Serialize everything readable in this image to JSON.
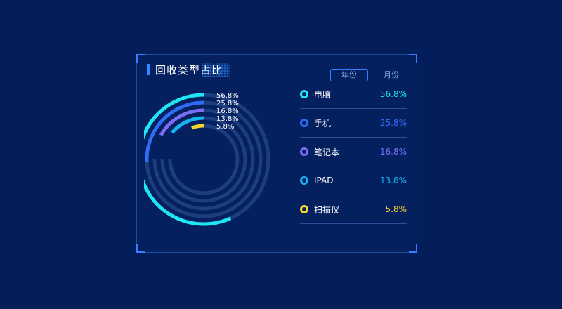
{
  "panel": {
    "title": "回收类型占比",
    "tabs": [
      {
        "label": "年份",
        "active": true
      },
      {
        "label": "月份",
        "active": false
      }
    ]
  },
  "chart_data": {
    "type": "radial-bar",
    "title": "回收类型占比",
    "categories": [
      "电脑",
      "手机",
      "笔记本",
      "IPAD",
      "扫描仪"
    ],
    "values": [
      56.8,
      25.8,
      16.8,
      13.8,
      5.8
    ],
    "labels": [
      "56.8%",
      "25.8%",
      "16.8%",
      "13.8%",
      "5.8%"
    ],
    "colors": [
      "#1ee6f5",
      "#2f6df7",
      "#7b6ef5",
      "#14b3f2",
      "#f9d32c"
    ],
    "track_color": "#1d3e7e"
  },
  "legend": [
    {
      "name": "电脑",
      "value": "56.8%",
      "color": "#1ee6f5"
    },
    {
      "name": "手机",
      "value": "25.8%",
      "color": "#2f6df7"
    },
    {
      "name": "笔记本",
      "value": "16.8%",
      "color": "#7b6ef5"
    },
    {
      "name": "IPAD",
      "value": "13.8%",
      "color": "#14b3f2"
    },
    {
      "name": "扫描仪",
      "value": "5.8%",
      "color": "#f9d32c"
    }
  ]
}
